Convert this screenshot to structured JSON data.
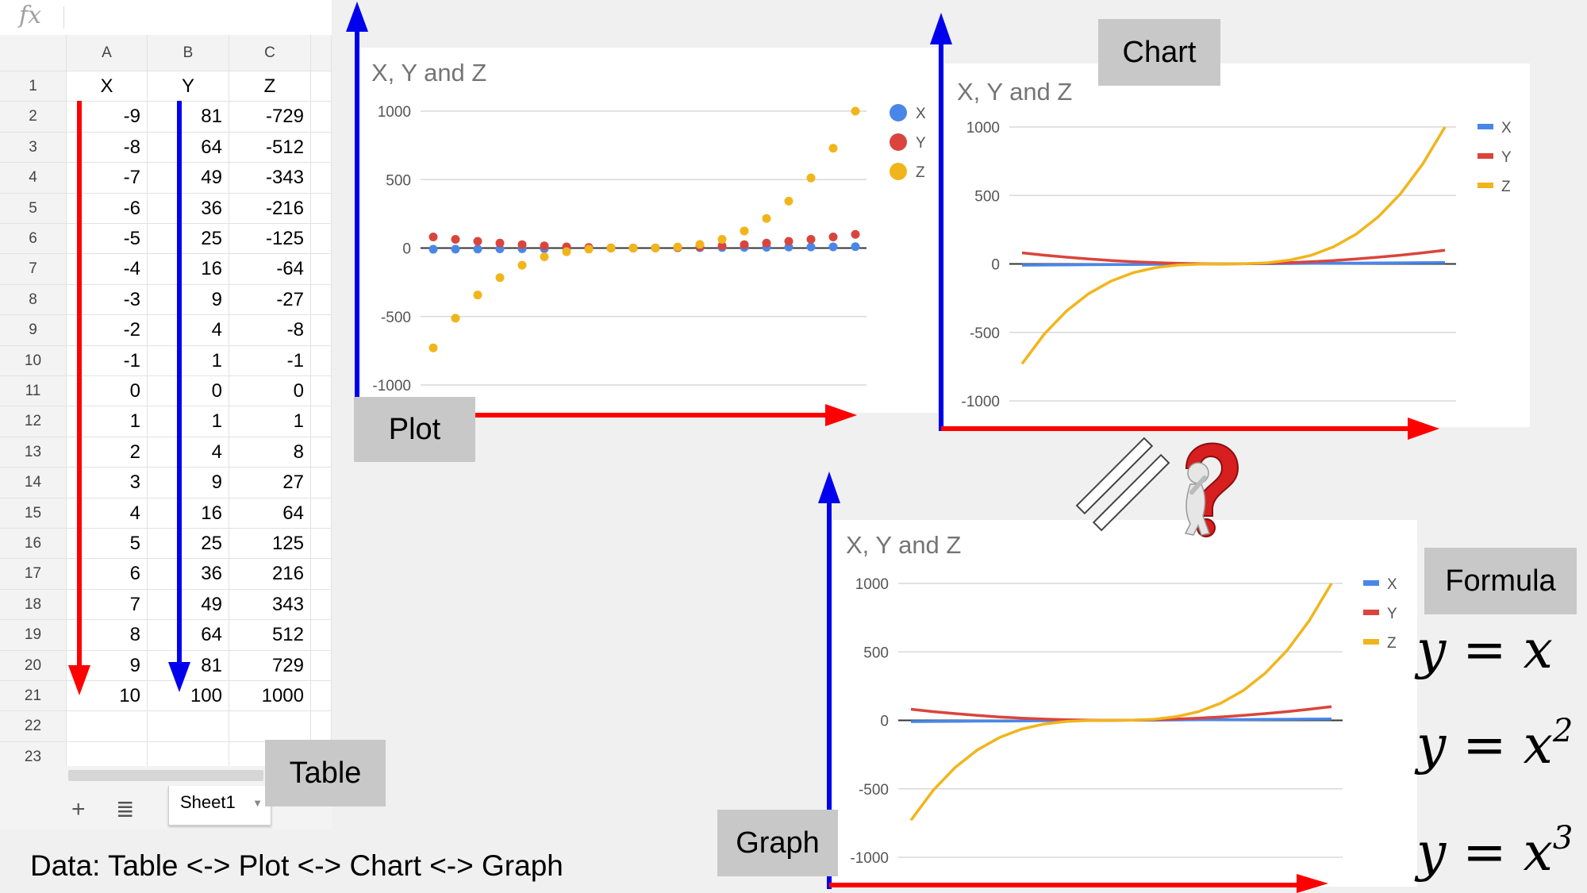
{
  "spreadsheet": {
    "formula_bar_icon": "fx",
    "columns": [
      "A",
      "B",
      "C"
    ],
    "row_numbers": [
      "1",
      "2",
      "3",
      "4",
      "5",
      "6",
      "7",
      "8",
      "9",
      "10",
      "11",
      "12",
      "13",
      "14",
      "15",
      "16",
      "17",
      "18",
      "19",
      "20",
      "21",
      "22",
      "23"
    ],
    "header_row": [
      "X",
      "Y",
      "Z"
    ],
    "rows": [
      [
        "-9",
        "81",
        "-729"
      ],
      [
        "-8",
        "64",
        "-512"
      ],
      [
        "-7",
        "49",
        "-343"
      ],
      [
        "-6",
        "36",
        "-216"
      ],
      [
        "-5",
        "25",
        "-125"
      ],
      [
        "-4",
        "16",
        "-64"
      ],
      [
        "-3",
        "9",
        "-27"
      ],
      [
        "-2",
        "4",
        "-8"
      ],
      [
        "-1",
        "1",
        "-1"
      ],
      [
        "0",
        "0",
        "0"
      ],
      [
        "1",
        "1",
        "1"
      ],
      [
        "2",
        "4",
        "8"
      ],
      [
        "3",
        "9",
        "27"
      ],
      [
        "4",
        "16",
        "64"
      ],
      [
        "5",
        "25",
        "125"
      ],
      [
        "6",
        "36",
        "216"
      ],
      [
        "7",
        "49",
        "343"
      ],
      [
        "8",
        "64",
        "512"
      ],
      [
        "9",
        "81",
        "729"
      ],
      [
        "10",
        "100",
        "1000"
      ]
    ],
    "sheet_tab": "Sheet1",
    "add_sheet_icon": "plus-icon",
    "all_sheets_icon": "list-icon"
  },
  "labels": {
    "table": "Table",
    "plot": "Plot",
    "chart": "Chart",
    "graph": "Graph",
    "formula": "Formula"
  },
  "caption": "Data: Table <-> Plot <-> Chart <-> Graph",
  "formulas": [
    {
      "lhs": "y",
      "eq": "=",
      "rhs": "x",
      "exp": ""
    },
    {
      "lhs": "y",
      "eq": "=",
      "rhs": "x",
      "exp": "2"
    },
    {
      "lhs": "y",
      "eq": "=",
      "rhs": "x",
      "exp": "3"
    }
  ],
  "colors": {
    "x_series": "#4a86e8",
    "y_series": "#d9453d",
    "z_series": "#f1b51c",
    "axis_arrow_vertical": "#0000ee",
    "axis_arrow_horizontal": "#ff0000",
    "label_box": "#c8c8c8"
  },
  "icons": {
    "not_equal": "not-equal-icon",
    "question": "thinking-person-question-icon"
  },
  "chart_data": [
    {
      "type": "scatter",
      "title": "X, Y and Z",
      "x": [
        -9,
        -8,
        -7,
        -6,
        -5,
        -4,
        -3,
        -2,
        -1,
        0,
        1,
        2,
        3,
        4,
        5,
        6,
        7,
        8,
        9,
        10
      ],
      "series": [
        {
          "name": "X",
          "values": [
            -9,
            -8,
            -7,
            -6,
            -5,
            -4,
            -3,
            -2,
            -1,
            0,
            1,
            2,
            3,
            4,
            5,
            6,
            7,
            8,
            9,
            10
          ]
        },
        {
          "name": "Y",
          "values": [
            81,
            64,
            49,
            36,
            25,
            16,
            9,
            4,
            1,
            0,
            1,
            4,
            9,
            16,
            25,
            36,
            49,
            64,
            81,
            100
          ]
        },
        {
          "name": "Z",
          "values": [
            -729,
            -512,
            -343,
            -216,
            -125,
            -64,
            -27,
            -8,
            -1,
            0,
            1,
            8,
            27,
            64,
            125,
            216,
            343,
            512,
            729,
            1000
          ]
        }
      ],
      "yticks": [
        "1000",
        "500",
        "0",
        "-500",
        "-1000"
      ],
      "ylim": [
        -1000,
        1000
      ],
      "legend": "right"
    },
    {
      "type": "line",
      "title": "X, Y and Z",
      "x": [
        -9,
        -8,
        -7,
        -6,
        -5,
        -4,
        -3,
        -2,
        -1,
        0,
        1,
        2,
        3,
        4,
        5,
        6,
        7,
        8,
        9,
        10
      ],
      "series": [
        {
          "name": "X",
          "values": [
            -9,
            -8,
            -7,
            -6,
            -5,
            -4,
            -3,
            -2,
            -1,
            0,
            1,
            2,
            3,
            4,
            5,
            6,
            7,
            8,
            9,
            10
          ]
        },
        {
          "name": "Y",
          "values": [
            81,
            64,
            49,
            36,
            25,
            16,
            9,
            4,
            1,
            0,
            1,
            4,
            9,
            16,
            25,
            36,
            49,
            64,
            81,
            100
          ]
        },
        {
          "name": "Z",
          "values": [
            -729,
            -512,
            -343,
            -216,
            -125,
            -64,
            -27,
            -8,
            -1,
            0,
            1,
            8,
            27,
            64,
            125,
            216,
            343,
            512,
            729,
            1000
          ]
        }
      ],
      "yticks": [
        "1000",
        "500",
        "0",
        "-500",
        "-1000"
      ],
      "ylim": [
        -1000,
        1000
      ],
      "legend": "right"
    },
    {
      "type": "line",
      "title": "X, Y and Z",
      "x": [
        -9,
        -8,
        -7,
        -6,
        -5,
        -4,
        -3,
        -2,
        -1,
        0,
        1,
        2,
        3,
        4,
        5,
        6,
        7,
        8,
        9,
        10
      ],
      "series": [
        {
          "name": "X",
          "values": [
            -9,
            -8,
            -7,
            -6,
            -5,
            -4,
            -3,
            -2,
            -1,
            0,
            1,
            2,
            3,
            4,
            5,
            6,
            7,
            8,
            9,
            10
          ]
        },
        {
          "name": "Y",
          "values": [
            81,
            64,
            49,
            36,
            25,
            16,
            9,
            4,
            1,
            0,
            1,
            4,
            9,
            16,
            25,
            36,
            49,
            64,
            81,
            100
          ]
        },
        {
          "name": "Z",
          "values": [
            -729,
            -512,
            -343,
            -216,
            -125,
            -64,
            -27,
            -8,
            -1,
            0,
            1,
            8,
            27,
            64,
            125,
            216,
            343,
            512,
            729,
            1000
          ]
        }
      ],
      "yticks": [
        "1000",
        "500",
        "0",
        "-500",
        "-1000"
      ],
      "ylim": [
        -1000,
        1000
      ],
      "legend": "right"
    }
  ]
}
